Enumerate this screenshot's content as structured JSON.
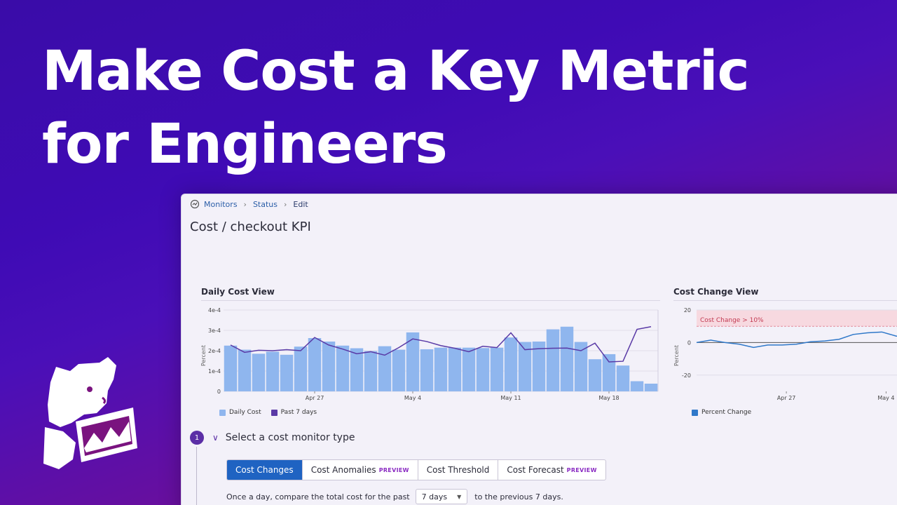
{
  "hero": {
    "line1": "Make Cost a Key Metric",
    "line2": "for Engineers"
  },
  "logo": {
    "name": "datadog-logo"
  },
  "breadcrumb": {
    "items": [
      "Monitors",
      "Status",
      "Edit"
    ]
  },
  "page_title": "Cost / checkout KPI",
  "daily_panel": {
    "title": "Daily Cost View",
    "y_axis_label": "Percent",
    "legend": [
      "Daily Cost",
      "Past 7 days"
    ]
  },
  "change_panel": {
    "title": "Cost Change View",
    "y_axis_label": "Percent",
    "threshold_label": "Cost Change > 10%",
    "legend": [
      "Percent Change"
    ]
  },
  "chart_data": [
    {
      "type": "bar",
      "title": "Daily Cost View",
      "ylabel": "Percent",
      "yticks": [
        "0",
        "1e-4",
        "2e-4",
        "3e-4",
        "4e-4"
      ],
      "ylim": [
        0,
        0.0004
      ],
      "xtick_labels": [
        "Apr 27",
        "May 4",
        "May 11",
        "May 18"
      ],
      "xtick_bar_index": [
        6,
        13,
        20,
        27
      ],
      "series": [
        {
          "name": "Daily Cost",
          "type": "bar",
          "color": "#8fb6ee",
          "values": [
            0.000225,
            0.000205,
            0.000185,
            0.000195,
            0.00018,
            0.00022,
            0.000262,
            0.000245,
            0.000225,
            0.000212,
            0.000198,
            0.000222,
            0.000205,
            0.00029,
            0.000207,
            0.000215,
            0.000215,
            0.000215,
            0.000213,
            0.000215,
            0.000265,
            0.000243,
            0.000245,
            0.000305,
            0.000318,
            0.000243,
            0.000158,
            0.000183,
            0.000127,
            5e-05,
            3.8e-05
          ]
        },
        {
          "name": "Past 7 days",
          "type": "line",
          "color": "#5a3aa6",
          "values": [
            0.000228,
            0.000192,
            0.000202,
            0.0002,
            0.000205,
            0.0002,
            0.000265,
            0.000228,
            0.000208,
            0.000185,
            0.000195,
            0.000178,
            0.000215,
            0.000258,
            0.000245,
            0.000225,
            0.000212,
            0.000195,
            0.000222,
            0.000215,
            0.000288,
            0.000205,
            0.00021,
            0.000212,
            0.000213,
            0.0002,
            0.000237,
            0.000145,
            0.000148,
            0.000305,
            0.000318
          ]
        }
      ]
    },
    {
      "type": "line",
      "title": "Cost Change View",
      "ylabel": "Percent",
      "yticks": [
        "-20",
        "0",
        "20"
      ],
      "ylim": [
        -30,
        20
      ],
      "threshold": 10,
      "xtick_labels": [
        "Apr 27",
        "May 4"
      ],
      "xtick_point_index": [
        6,
        13
      ],
      "series": [
        {
          "name": "Percent Change",
          "color": "#2f78c9",
          "values": [
            0,
            1.5,
            0,
            -1,
            -3,
            -1.5,
            -1.5,
            -1,
            0.5,
            1,
            2,
            5,
            6,
            6.5,
            4,
            3
          ]
        }
      ]
    }
  ],
  "step": {
    "number": "1",
    "chevron": "chevron-down-icon",
    "label": "Select a cost monitor type"
  },
  "tabs": [
    {
      "label": "Cost Changes",
      "badge": "",
      "active": true
    },
    {
      "label": "Cost Anomalies",
      "badge": "PREVIEW",
      "active": false
    },
    {
      "label": "Cost Threshold",
      "badge": "",
      "active": false
    },
    {
      "label": "Cost Forecast",
      "badge": "PREVIEW",
      "active": false
    }
  ],
  "sentence": {
    "before": "Once a day, compare the total cost for the past",
    "select_value": "7 days",
    "after": "to the previous 7 days."
  },
  "colors": {
    "accent": "#1f63c2",
    "step": "#5b2ea6",
    "bar": "#8fb6ee",
    "line7d": "#5a3aa6",
    "threshold": "#f7c7cf"
  }
}
